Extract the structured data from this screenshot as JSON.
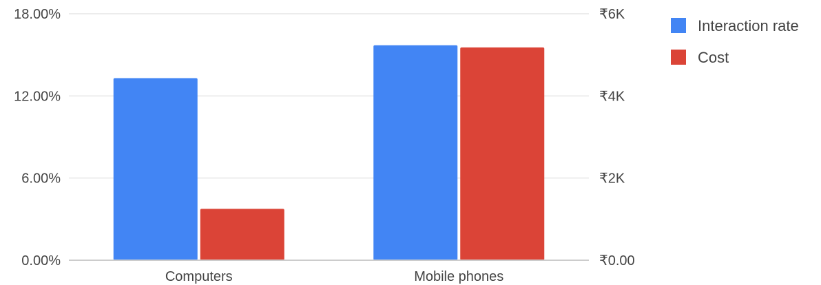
{
  "chart_data": {
    "type": "bar",
    "categories": [
      "Computers",
      "Mobile phones"
    ],
    "series": [
      {
        "name": "Interaction rate",
        "axis": "left",
        "color": "#4285F4",
        "values": [
          13.3,
          15.7
        ]
      },
      {
        "name": "Cost",
        "axis": "right",
        "color": "#DB4437",
        "values": [
          1250,
          5180
        ]
      }
    ],
    "y_left": {
      "ylim": [
        0,
        18
      ],
      "ticks": [
        0,
        6,
        12,
        18
      ],
      "tick_labels": [
        "0.00%",
        "6.00%",
        "12.00%",
        "18.00%"
      ]
    },
    "y_right": {
      "ylim": [
        0,
        6000
      ],
      "ticks": [
        0,
        2000,
        4000,
        6000
      ],
      "tick_labels": [
        "₹0.00",
        "₹2K",
        "₹4K",
        "₹6K"
      ]
    },
    "grid": true,
    "legend_position": "right"
  }
}
